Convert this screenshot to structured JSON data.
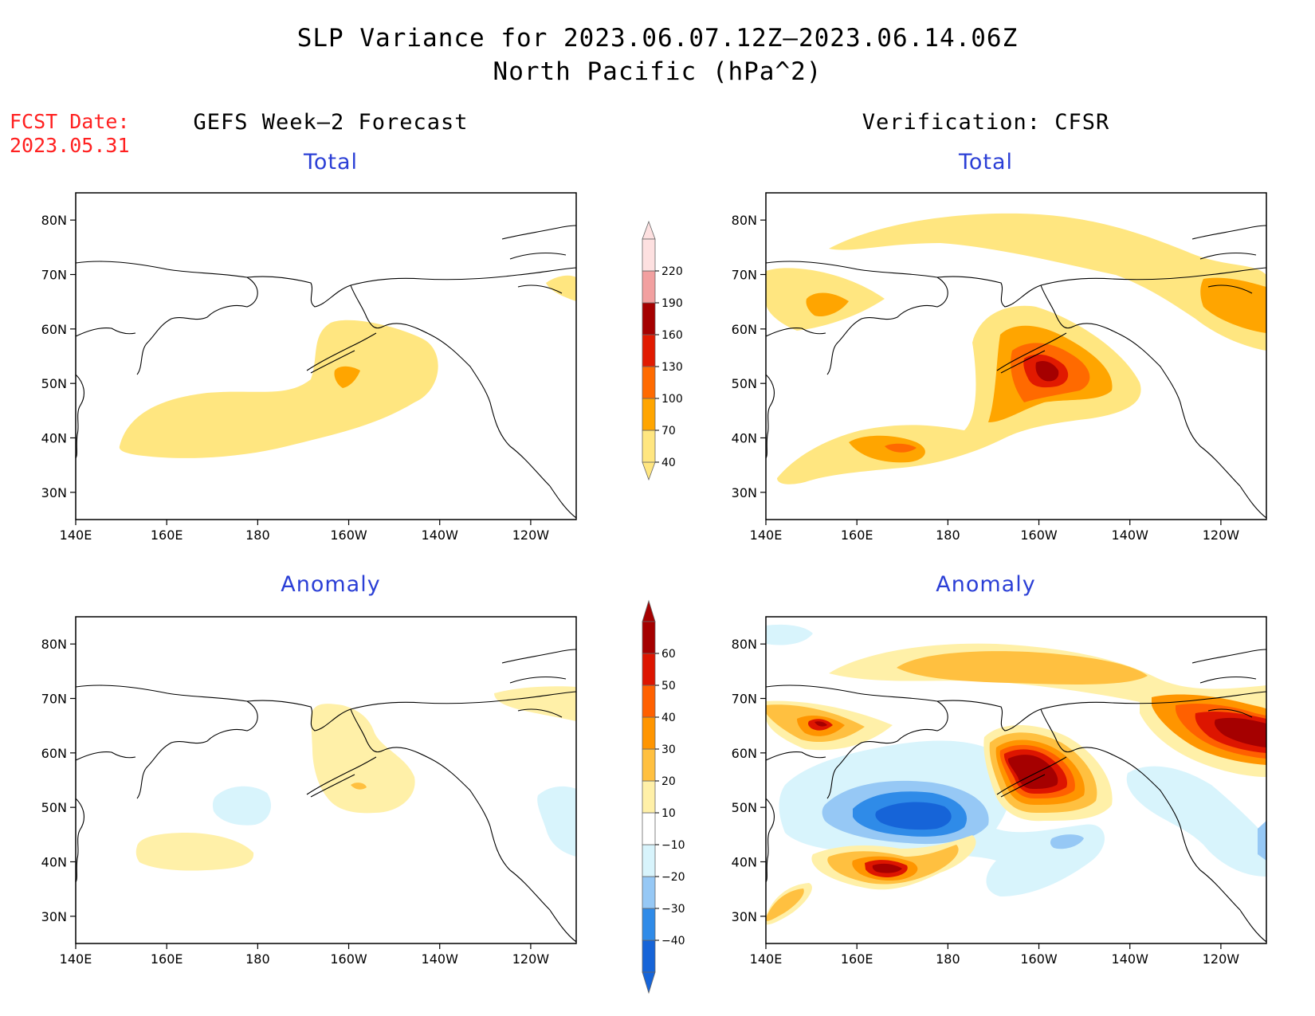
{
  "title": {
    "line1": "SLP Variance for 2023.06.07.12Z–2023.06.14.06Z",
    "line2": "North Pacific (hPa^2)"
  },
  "forecast_date": {
    "label": "FCST Date:",
    "value": "2023.05.31"
  },
  "columns": {
    "left": "GEFS Week–2 Forecast",
    "right": "Verification: CFSR"
  },
  "panels": {
    "total": "Total",
    "anomaly": "Anomaly"
  },
  "axes": {
    "lat_ticks": [
      "80N",
      "70N",
      "60N",
      "50N",
      "40N",
      "30N"
    ],
    "lat_values": [
      80,
      70,
      60,
      50,
      40,
      30
    ],
    "lon_ticks": [
      "140E",
      "160E",
      "180",
      "160W",
      "140W",
      "120W"
    ],
    "lon_values": [
      140,
      160,
      180,
      200,
      220,
      240
    ],
    "lon_range": [
      140,
      250
    ],
    "lat_range": [
      25,
      85
    ]
  },
  "colorbars": {
    "total": {
      "labels": [
        "40",
        "70",
        "100",
        "130",
        "160",
        "190",
        "220"
      ],
      "colors": [
        "#ffe680",
        "#ffa500",
        "#ff6a00",
        "#e11a00",
        "#a50000",
        "#f2a0a0",
        "#fde0e0"
      ]
    },
    "anomaly": {
      "labels": [
        "−40",
        "−30",
        "−20",
        "−10",
        "10",
        "20",
        "30",
        "40",
        "50",
        "60"
      ],
      "colors": [
        "#1664d8",
        "#2f8be8",
        "#96c8f5",
        "#d8f4fc",
        "#ffffff",
        "#fff0a8",
        "#ffc040",
        "#ff9500",
        "#ff6000",
        "#dd1500",
        "#a50000"
      ]
    }
  }
}
